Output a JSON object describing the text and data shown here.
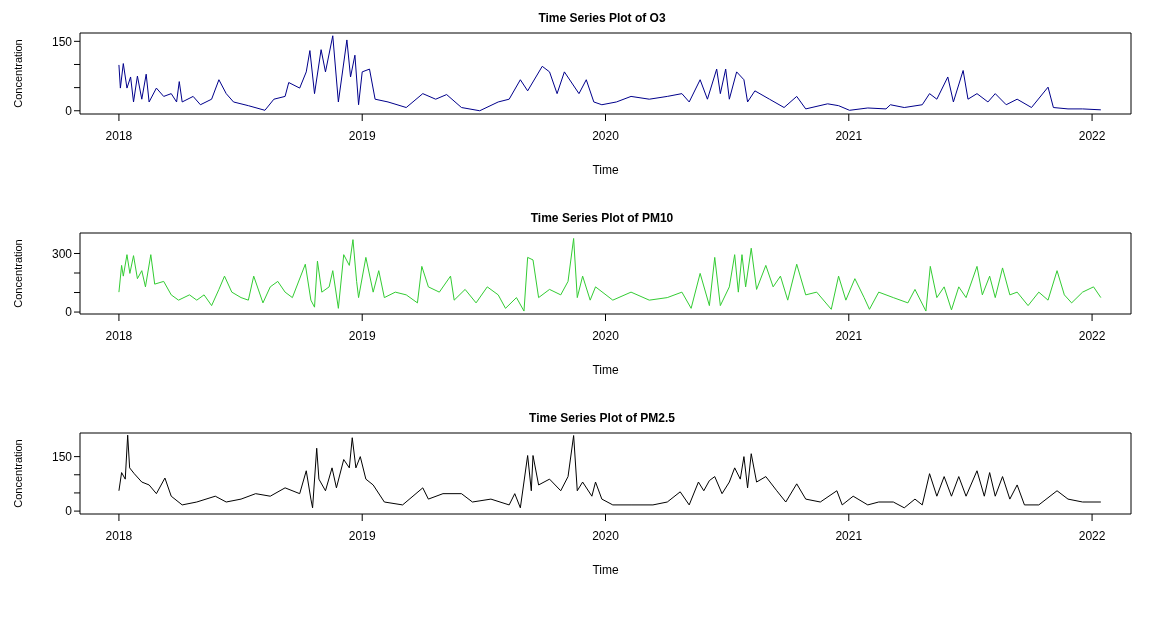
{
  "chart_data": [
    {
      "type": "line",
      "title": "Time Series Plot of O3",
      "xlabel": "Time",
      "ylabel": "Concentration",
      "color": "#00008b",
      "x": [
        2018.0,
        2018.006,
        2018.018,
        2018.033,
        2018.048,
        2018.06,
        2018.076,
        2018.094,
        2018.112,
        2018.124,
        2018.154,
        2018.184,
        2018.215,
        2018.237,
        2018.248,
        2018.26,
        2018.305,
        2018.335,
        2018.381,
        2018.411,
        2018.441,
        2018.471,
        2018.532,
        2018.6,
        2018.637,
        2018.683,
        2018.698,
        2018.743,
        2018.77,
        2018.785,
        2018.804,
        2018.831,
        2018.849,
        2018.879,
        2018.902,
        2018.937,
        2018.952,
        2018.97,
        2018.985,
        2019.0,
        2019.03,
        2019.053,
        2019.106,
        2019.181,
        2019.249,
        2019.302,
        2019.347,
        2019.408,
        2019.483,
        2019.559,
        2019.604,
        2019.65,
        2019.68,
        2019.74,
        2019.77,
        2019.801,
        2019.831,
        2019.891,
        2019.921,
        2019.952,
        2019.985,
        2020.045,
        2020.105,
        2020.18,
        2020.254,
        2020.314,
        2020.344,
        2020.389,
        2020.419,
        2020.457,
        2020.472,
        2020.494,
        2020.509,
        2020.539,
        2020.569,
        2020.584,
        2020.614,
        2020.674,
        2020.734,
        2020.786,
        2020.823,
        2020.913,
        2020.958,
        2021.003,
        2021.078,
        2021.153,
        2021.171,
        2021.228,
        2021.302,
        2021.332,
        2021.362,
        2021.407,
        2021.43,
        2021.47,
        2021.49,
        2021.527,
        2021.572,
        2021.602,
        2021.647,
        2021.692,
        2021.751,
        2021.819,
        2021.841,
        2021.901,
        2021.961,
        2022.036
      ],
      "values": [
        99,
        49,
        102,
        49,
        73,
        19,
        75,
        25,
        79,
        19,
        49,
        31,
        37,
        19,
        63,
        19,
        31,
        13,
        25,
        67,
        37,
        19,
        11,
        1,
        25,
        31,
        61,
        49,
        84,
        130,
        37,
        132,
        84,
        162,
        19,
        153,
        73,
        120,
        13,
        84,
        90,
        25,
        19,
        7,
        37,
        25,
        35,
        7,
        0,
        19,
        25,
        67,
        43,
        96,
        84,
        37,
        84,
        37,
        67,
        19,
        13,
        19,
        31,
        25,
        31,
        37,
        19,
        67,
        25,
        90,
        37,
        90,
        25,
        84,
        67,
        19,
        43,
        25,
        7,
        31,
        4,
        15,
        11,
        1,
        6,
        4,
        13,
        7,
        13,
        37,
        25,
        73,
        19,
        87,
        25,
        37,
        19,
        37,
        13,
        25,
        7,
        51,
        7,
        4,
        4,
        2
      ],
      "xlim": [
        2017.84,
        2022.16
      ],
      "xticks": [
        2018,
        2019,
        2020,
        2021,
        2022
      ],
      "ylim": [
        -7,
        168
      ],
      "yticks": [
        0,
        {
          "value": 50,
          "label": null
        },
        {
          "value": 100,
          "label": null
        },
        150
      ]
    },
    {
      "type": "line",
      "title": "Time Series Plot of PM10",
      "xlabel": "Time",
      "ylabel": "Concentration",
      "color": "#33cc33",
      "x": [
        2018.0,
        2018.011,
        2018.018,
        2018.033,
        2018.045,
        2018.06,
        2018.076,
        2018.094,
        2018.109,
        2018.131,
        2018.147,
        2018.184,
        2018.215,
        2018.245,
        2018.29,
        2018.32,
        2018.35,
        2018.381,
        2018.411,
        2018.434,
        2018.464,
        2018.502,
        2018.532,
        2018.554,
        2018.592,
        2018.622,
        2018.653,
        2018.683,
        2018.713,
        2018.766,
        2018.789,
        2018.804,
        2018.816,
        2018.834,
        2018.864,
        2018.879,
        2018.902,
        2018.924,
        2018.947,
        2018.962,
        2018.977,
        2018.985,
        2019.015,
        2019.045,
        2019.068,
        2019.091,
        2019.136,
        2019.181,
        2019.227,
        2019.245,
        2019.272,
        2019.317,
        2019.363,
        2019.378,
        2019.423,
        2019.468,
        2019.514,
        2019.559,
        2019.589,
        2019.634,
        2019.665,
        2019.68,
        2019.702,
        2019.725,
        2019.77,
        2019.816,
        2019.846,
        2019.869,
        2019.884,
        2019.906,
        2019.937,
        2019.959,
        2020.03,
        2020.105,
        2020.18,
        2020.254,
        2020.314,
        2020.352,
        2020.389,
        2020.427,
        2020.449,
        2020.472,
        2020.509,
        2020.531,
        2020.546,
        2020.561,
        2020.576,
        2020.599,
        2020.621,
        2020.659,
        2020.689,
        2020.719,
        2020.749,
        2020.786,
        2020.823,
        2020.868,
        2020.928,
        2020.958,
        2020.988,
        2021.025,
        2021.063,
        2021.085,
        2021.123,
        2021.183,
        2021.243,
        2021.272,
        2021.317,
        2021.335,
        2021.362,
        2021.392,
        2021.422,
        2021.452,
        2021.482,
        2021.527,
        2021.549,
        2021.579,
        2021.602,
        2021.632,
        2021.662,
        2021.692,
        2021.737,
        2021.781,
        2021.819,
        2021.856,
        2021.886,
        2021.916,
        2021.961,
        2022.006,
        2022.036
      ],
      "values": [
        102,
        239,
        184,
        294,
        198,
        289,
        171,
        212,
        129,
        294,
        143,
        157,
        88,
        61,
        88,
        61,
        88,
        33,
        116,
        184,
        102,
        74,
        61,
        184,
        47,
        129,
        157,
        102,
        74,
        245,
        61,
        25,
        261,
        102,
        129,
        212,
        19,
        294,
        239,
        371,
        157,
        74,
        280,
        102,
        212,
        74,
        102,
        88,
        47,
        234,
        129,
        102,
        184,
        61,
        116,
        47,
        129,
        88,
        19,
        74,
        5,
        280,
        267,
        74,
        116,
        88,
        157,
        377,
        74,
        184,
        61,
        129,
        61,
        102,
        61,
        74,
        102,
        19,
        198,
        33,
        280,
        33,
        129,
        294,
        102,
        294,
        129,
        327,
        116,
        239,
        129,
        184,
        61,
        245,
        88,
        102,
        14,
        184,
        61,
        171,
        74,
        14,
        102,
        74,
        47,
        116,
        5,
        234,
        74,
        129,
        11,
        129,
        74,
        234,
        88,
        184,
        74,
        226,
        88,
        102,
        33,
        102,
        61,
        212,
        88,
        47,
        102,
        129,
        74
      ],
      "xlim": [
        2017.84,
        2022.16
      ],
      "xticks": [
        2018,
        2019,
        2020,
        2021,
        2022
      ],
      "ylim": [
        -10,
        405
      ],
      "yticks": [
        0,
        {
          "value": 100,
          "label": null
        },
        {
          "value": 200,
          "label": null
        },
        300
      ]
    },
    {
      "type": "line",
      "title": "Time Series Plot of PM2.5",
      "xlabel": "Time",
      "ylabel": "Concentration",
      "color": "#000000",
      "x": [
        2018.0,
        2018.011,
        2018.026,
        2018.036,
        2018.044,
        2018.063,
        2018.094,
        2018.124,
        2018.154,
        2018.189,
        2018.215,
        2018.26,
        2018.32,
        2018.396,
        2018.441,
        2018.502,
        2018.562,
        2018.622,
        2018.683,
        2018.743,
        2018.77,
        2018.789,
        2018.796,
        2018.813,
        2018.822,
        2018.849,
        2018.876,
        2018.894,
        2018.924,
        2018.947,
        2018.959,
        2018.974,
        2018.992,
        2019.015,
        2019.045,
        2019.091,
        2019.166,
        2019.249,
        2019.272,
        2019.332,
        2019.408,
        2019.453,
        2019.529,
        2019.604,
        2019.627,
        2019.65,
        2019.68,
        2019.695,
        2019.702,
        2019.725,
        2019.77,
        2019.816,
        2019.846,
        2019.869,
        2019.884,
        2019.906,
        2019.944,
        2019.959,
        2019.985,
        2020.03,
        2020.105,
        2020.195,
        2020.254,
        2020.307,
        2020.344,
        2020.382,
        2020.404,
        2020.427,
        2020.449,
        2020.479,
        2020.509,
        2020.531,
        2020.554,
        2020.569,
        2020.584,
        2020.599,
        2020.621,
        2020.659,
        2020.704,
        2020.741,
        2020.786,
        2020.823,
        2020.883,
        2020.951,
        2020.973,
        2021.018,
        2021.078,
        2021.123,
        2021.183,
        2021.228,
        2021.272,
        2021.302,
        2021.332,
        2021.362,
        2021.392,
        2021.422,
        2021.452,
        2021.482,
        2021.527,
        2021.557,
        2021.579,
        2021.602,
        2021.632,
        2021.662,
        2021.692,
        2021.722,
        2021.781,
        2021.856,
        2021.901,
        2021.961,
        2022.036
      ],
      "values": [
        56,
        106,
        88,
        209,
        119,
        103,
        80,
        72,
        48,
        91,
        41,
        17,
        25,
        41,
        25,
        33,
        48,
        41,
        64,
        48,
        111,
        33,
        9,
        173,
        88,
        56,
        119,
        64,
        142,
        119,
        202,
        119,
        150,
        88,
        72,
        25,
        17,
        64,
        33,
        48,
        48,
        25,
        33,
        17,
        48,
        9,
        153,
        56,
        153,
        72,
        88,
        56,
        95,
        208,
        56,
        80,
        41,
        80,
        33,
        17,
        17,
        17,
        25,
        53,
        17,
        80,
        56,
        84,
        95,
        48,
        80,
        119,
        88,
        150,
        64,
        158,
        80,
        95,
        56,
        25,
        75,
        33,
        25,
        56,
        17,
        41,
        17,
        25,
        25,
        9,
        33,
        17,
        103,
        41,
        95,
        41,
        95,
        41,
        111,
        41,
        106,
        41,
        95,
        33,
        72,
        17,
        17,
        56,
        33,
        25,
        25
      ],
      "xlim": [
        2017.84,
        2022.16
      ],
      "xticks": [
        2018,
        2019,
        2020,
        2021,
        2022
      ],
      "ylim": [
        -8,
        215
      ],
      "yticks": [
        0,
        {
          "value": 50,
          "label": null
        },
        {
          "value": 100,
          "label": null
        },
        150
      ]
    }
  ]
}
